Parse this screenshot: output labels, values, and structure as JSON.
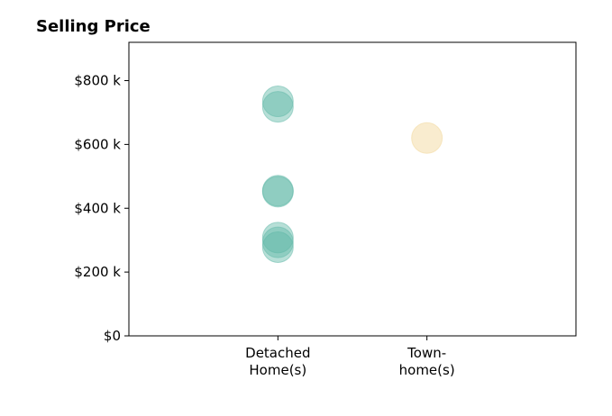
{
  "chart_data": {
    "type": "scatter",
    "title": "Selling Price",
    "xlabel": "",
    "ylabel": "",
    "categories": [
      {
        "lines": [
          "Detached",
          "Home(s)"
        ]
      },
      {
        "lines": [
          "Town-",
          "home(s)"
        ]
      }
    ],
    "xlim": [
      -1,
      2
    ],
    "ylim": [
      0,
      920
    ],
    "yticks": [
      {
        "value": 0,
        "label": "$0"
      },
      {
        "value": 200,
        "label": "$200 k"
      },
      {
        "value": 400,
        "label": "$400 k"
      },
      {
        "value": 600,
        "label": "$600 k"
      },
      {
        "value": 800,
        "label": "$800 k"
      }
    ],
    "grid": false,
    "legend": "none",
    "series": [
      {
        "category_index": 0,
        "color": "#5fb8a7",
        "values": [
          735,
          718,
          455,
          452,
          308,
          293,
          278
        ]
      },
      {
        "category_index": 1,
        "color": "#f2d595",
        "values": [
          620
        ]
      }
    ]
  }
}
